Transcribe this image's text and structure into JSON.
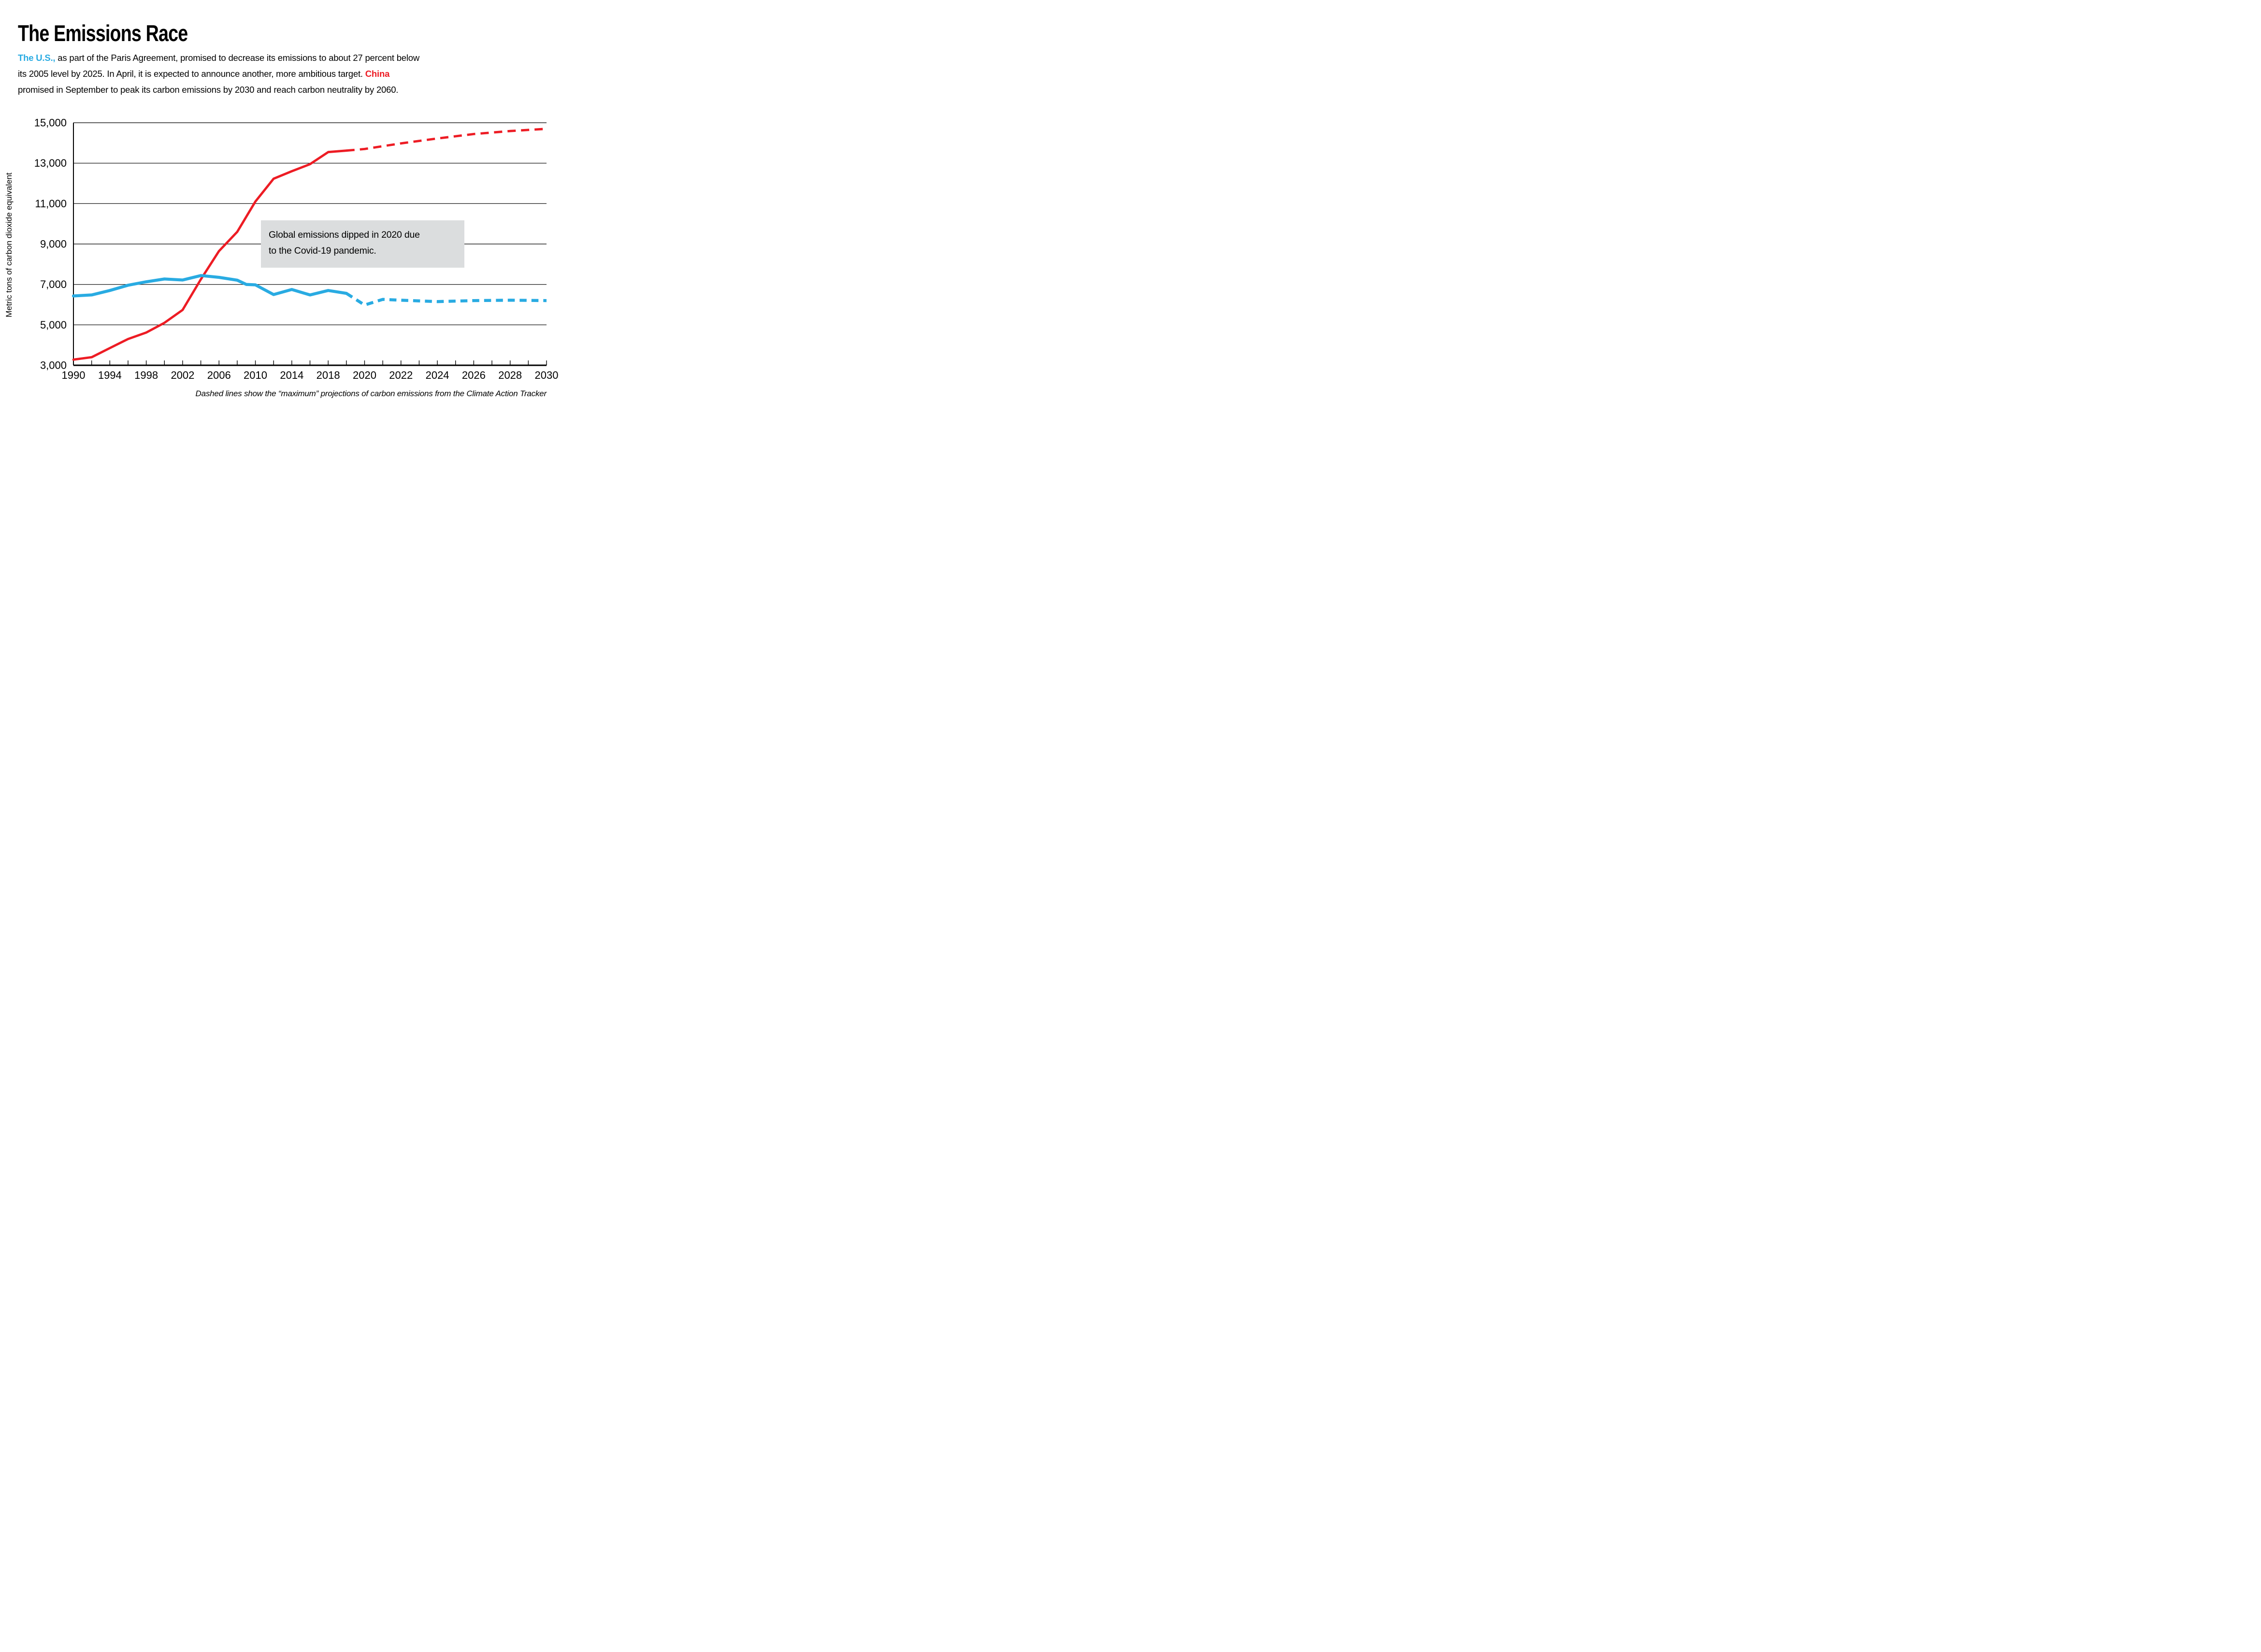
{
  "header": {
    "title": "The Emissions Race",
    "subtitle": {
      "us_label": "The U.S.,",
      "line1_rest": " as part of the Paris Agreement, promised to decrease its emissions to about 27 percent below",
      "line2": "its 2005 level by 2025. In April, it is expected to announce another, more ambitious target. ",
      "china_label": "China",
      "line3": "promised in September to peak its carbon emissions by 2030 and reach carbon neutrality by 2060."
    }
  },
  "footer": {
    "note": "Dashed lines show the “maximum” projections of carbon emissions from the Climate Action Tracker"
  },
  "chart_data": {
    "type": "line",
    "title": "",
    "xlabel": "",
    "ylabel": "Metric tons of carbon dioxide equivalent",
    "ylim": [
      3000,
      15000
    ],
    "grid": "horizontal",
    "axis_note": "x axis non-linear: 4-year label steps through 2018, 2-year steps 2018-2030, equally spaced",
    "dashed_note": "dashed segments are maximum projections from the Climate Action Tracker",
    "y_ticks": [
      {
        "label": "15,000",
        "value": 15000
      },
      {
        "label": "13,000",
        "value": 13000
      },
      {
        "label": "11,000",
        "value": 11000
      },
      {
        "label": "9,000",
        "value": 9000
      },
      {
        "label": "7,000",
        "value": 7000
      },
      {
        "label": "5,000",
        "value": 5000
      },
      {
        "label": "3,000",
        "value": 3000
      }
    ],
    "x_ticks": [
      {
        "label": "1990",
        "year": 1990
      },
      {
        "label": "1994",
        "year": 1994
      },
      {
        "label": "1998",
        "year": 1998
      },
      {
        "label": "2002",
        "year": 2002
      },
      {
        "label": "2006",
        "year": 2006
      },
      {
        "label": "2010",
        "year": 2010
      },
      {
        "label": "2014",
        "year": 2014
      },
      {
        "label": "2018",
        "year": 2018
      },
      {
        "label": "2020",
        "year": 2020
      },
      {
        "label": "2022",
        "year": 2022
      },
      {
        "label": "2024",
        "year": 2024
      },
      {
        "label": "2026",
        "year": 2026
      },
      {
        "label": "2028",
        "year": 2028
      },
      {
        "label": "2030",
        "year": 2030
      }
    ],
    "series": [
      {
        "name": "China",
        "color": "#ED1C24",
        "line_width": 4.8,
        "dash_pattern": [
          17,
          11
        ],
        "solid": [
          [
            1990,
            3280
          ],
          [
            1992,
            3400
          ],
          [
            1994,
            3850
          ],
          [
            1996,
            4300
          ],
          [
            1998,
            4620
          ],
          [
            2000,
            5100
          ],
          [
            2002,
            5740
          ],
          [
            2004,
            7250
          ],
          [
            2006,
            8650
          ],
          [
            2008,
            9600
          ],
          [
            2010,
            11100
          ],
          [
            2012,
            12230
          ],
          [
            2014,
            12600
          ],
          [
            2016,
            12950
          ],
          [
            2018,
            13550
          ],
          [
            2019,
            13620
          ]
        ],
        "dashed": [
          [
            2019,
            13620
          ],
          [
            2020,
            13700
          ],
          [
            2022,
            13980
          ],
          [
            2024,
            14220
          ],
          [
            2026,
            14440
          ],
          [
            2028,
            14590
          ],
          [
            2030,
            14700
          ]
        ]
      },
      {
        "name": "U.S.",
        "color": "#29ABE2",
        "line_width": 6.3,
        "dash_pattern": [
          14.5,
          10
        ],
        "solid": [
          [
            1990,
            6430
          ],
          [
            1992,
            6480
          ],
          [
            1994,
            6700
          ],
          [
            1996,
            6960
          ],
          [
            1998,
            7130
          ],
          [
            2000,
            7270
          ],
          [
            2002,
            7220
          ],
          [
            2004,
            7440
          ],
          [
            2006,
            7350
          ],
          [
            2008,
            7210
          ],
          [
            2009,
            7000
          ],
          [
            2010,
            6980
          ],
          [
            2012,
            6500
          ],
          [
            2014,
            6750
          ],
          [
            2016,
            6480
          ],
          [
            2018,
            6700
          ],
          [
            2019,
            6560
          ]
        ],
        "dashed": [
          [
            2019,
            6560
          ],
          [
            2020,
            5980
          ],
          [
            2021,
            6260
          ],
          [
            2022,
            6220
          ],
          [
            2024,
            6150
          ],
          [
            2026,
            6200
          ],
          [
            2028,
            6220
          ],
          [
            2030,
            6200
          ]
        ]
      }
    ],
    "annotation": {
      "line1": "Global emissions dipped in 2020 due",
      "line2": "to the Covid-19 pandemic.",
      "background": "#DBDDDE"
    }
  }
}
